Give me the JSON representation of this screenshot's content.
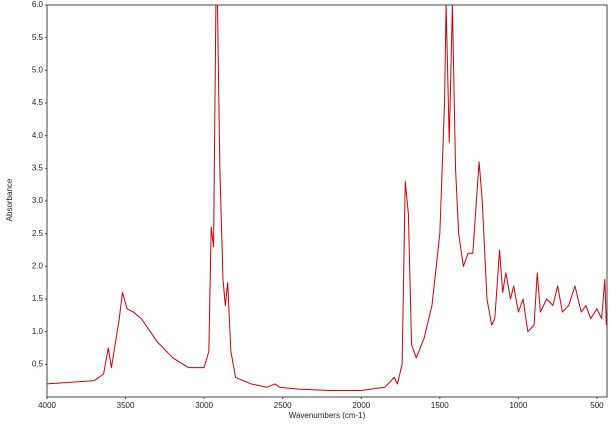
{
  "chart_data": {
    "type": "line",
    "ylabel": "Absorbance",
    "xlabel": "Wavenumbers (cm-1)",
    "color": "#cc0000",
    "xlim": [
      4000,
      436
    ],
    "ylim": [
      0,
      6
    ],
    "xticks": [
      4000,
      3500,
      3000,
      2500,
      2000,
      1500,
      1000,
      500
    ],
    "yticks": [
      0.5,
      {
        "value": 1,
        "label": "1.0"
      },
      1.5,
      {
        "value": 2,
        "label": "2.0"
      },
      2.5,
      {
        "value": 3,
        "label": "3.0"
      },
      3.5,
      {
        "value": 4,
        "label": "4.0"
      },
      4.5,
      {
        "value": 5,
        "label": "5.0"
      },
      5.5,
      {
        "value": 6,
        "label": "6.0"
      }
    ],
    "x": [
      4000,
      3700,
      3640,
      3610,
      3590,
      3540,
      3520,
      3490,
      3450,
      3400,
      3300,
      3200,
      3100,
      3000,
      2970,
      2955,
      2940,
      2925,
      2915,
      2900,
      2880,
      2865,
      2850,
      2830,
      2800,
      2700,
      2600,
      2550,
      2520,
      2400,
      2200,
      2000,
      1850,
      1790,
      1770,
      1740,
      1720,
      1700,
      1680,
      1650,
      1600,
      1550,
      1500,
      1470,
      1460,
      1440,
      1420,
      1400,
      1380,
      1350,
      1320,
      1290,
      1250,
      1230,
      1200,
      1170,
      1150,
      1120,
      1100,
      1080,
      1050,
      1030,
      1000,
      970,
      940,
      900,
      880,
      860,
      820,
      780,
      750,
      720,
      680,
      640,
      600,
      570,
      540,
      500,
      470,
      450,
      440
    ],
    "values": [
      0.2,
      0.25,
      0.35,
      0.75,
      0.45,
      1.2,
      1.6,
      1.35,
      1.3,
      1.2,
      0.85,
      0.6,
      0.45,
      0.45,
      0.7,
      2.6,
      2.3,
      6.0,
      6.0,
      3.5,
      1.8,
      1.4,
      1.75,
      0.7,
      0.3,
      0.2,
      0.15,
      0.2,
      0.15,
      0.12,
      0.1,
      0.1,
      0.15,
      0.3,
      0.2,
      0.5,
      3.3,
      2.8,
      0.8,
      0.6,
      0.9,
      1.4,
      2.5,
      4.5,
      6.0,
      3.9,
      6.0,
      3.5,
      2.5,
      2.0,
      2.2,
      2.2,
      3.6,
      3.0,
      1.5,
      1.1,
      1.2,
      2.25,
      1.6,
      1.9,
      1.5,
      1.7,
      1.3,
      1.5,
      1.0,
      1.1,
      1.9,
      1.3,
      1.5,
      1.4,
      1.7,
      1.3,
      1.4,
      1.7,
      1.3,
      1.4,
      1.2,
      1.35,
      1.2,
      1.8,
      1.1
    ]
  }
}
